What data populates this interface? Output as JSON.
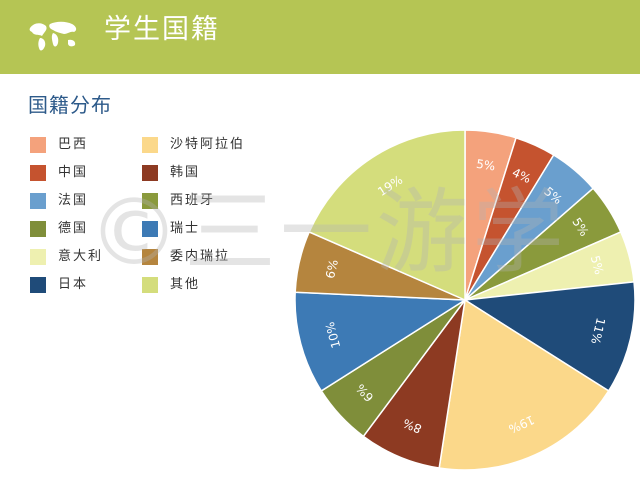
{
  "header": {
    "title": "学生国籍",
    "bg_color": "#b5c554"
  },
  "section_title": "国籍分布",
  "watermark": "©三一游学",
  "chart_data": {
    "type": "pie",
    "title": "",
    "start": "top",
    "direction": "clockwise",
    "slices": [
      {
        "name": "巴西",
        "value": 5,
        "label": "5%",
        "color": "#f4a27c"
      },
      {
        "name": "中国",
        "value": 4,
        "label": "4%",
        "color": "#c5532f"
      },
      {
        "name": "法国",
        "value": 5,
        "label": "5%",
        "color": "#6a9fce"
      },
      {
        "name": "西班牙",
        "value": 5,
        "label": "5%",
        "color": "#8a9a3c"
      },
      {
        "name": "意大利",
        "value": 5,
        "label": "5%",
        "color": "#eef0b0"
      },
      {
        "name": "日本",
        "value": 11,
        "label": "11%",
        "color": "#1f4b79"
      },
      {
        "name": "沙特阿拉伯",
        "value": 19,
        "label": "19%",
        "color": "#fbd88a"
      },
      {
        "name": "韩国",
        "value": 8,
        "label": "8%",
        "color": "#8d3a22"
      },
      {
        "name": "德国",
        "value": 6,
        "label": "6%",
        "color": "#7f8e3a"
      },
      {
        "name": "瑞士",
        "value": 10,
        "label": "10%",
        "color": "#3d7ab5"
      },
      {
        "name": "委内瑞拉",
        "value": 6,
        "label": "6%",
        "color": "#b5853e"
      },
      {
        "name": "其他",
        "value": 19,
        "label": "19%",
        "color": "#d4dd7c"
      }
    ],
    "legend_order": [
      "巴西",
      "沙特阿拉伯",
      "中国",
      "韩国",
      "法国",
      "西班牙",
      "德国",
      "瑞士",
      "意大利",
      "委内瑞拉",
      "日本",
      "其他"
    ],
    "legend_placement": "left"
  }
}
